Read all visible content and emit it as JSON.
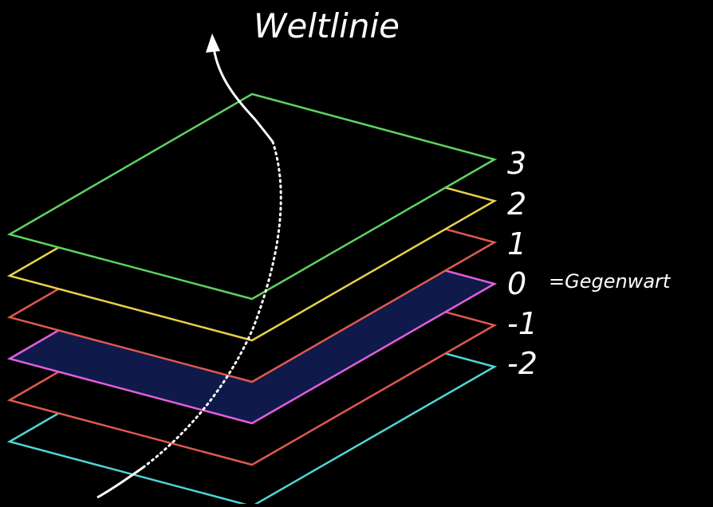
{
  "title": "Weltlinie",
  "present_note": "=Gegenwart",
  "layers": [
    {
      "label": "3",
      "color": "#5fd35f",
      "fill": "none"
    },
    {
      "label": "2",
      "color": "#e6d24a",
      "fill": "none"
    },
    {
      "label": "1",
      "color": "#e0594f",
      "fill": "none"
    },
    {
      "label": "0",
      "color": "#e25ee0",
      "fill": "#101a4a"
    },
    {
      "label": "-1",
      "color": "#e0594f",
      "fill": "none"
    },
    {
      "label": "-2",
      "color": "#4fd6d6",
      "fill": "none"
    }
  ],
  "worldline_color": "#ffffff"
}
